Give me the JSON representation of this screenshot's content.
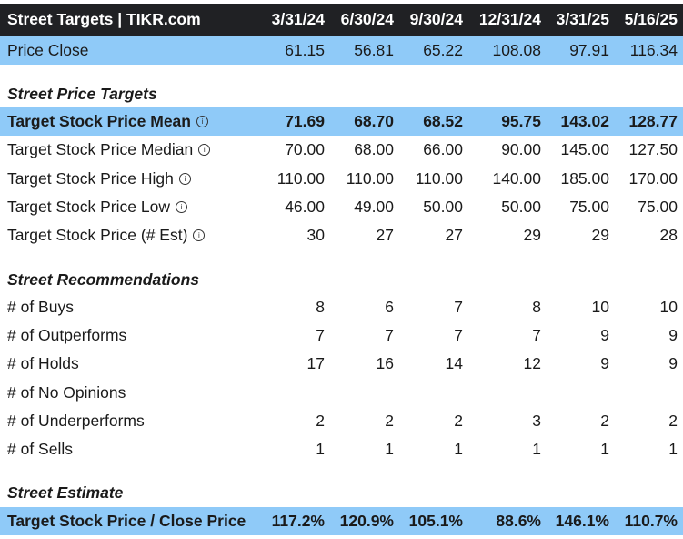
{
  "title": "Street Targets | TIKR.com",
  "columns": [
    "3/31/24",
    "6/30/24",
    "9/30/24",
    "12/31/24",
    "3/31/25",
    "5/16/25"
  ],
  "rows": [
    {
      "label": "Price Close",
      "values": [
        "61.15",
        "56.81",
        "65.22",
        "108.08",
        "97.91",
        "116.34"
      ],
      "style": "blue"
    },
    {
      "label": "Street Price Targets",
      "values": [],
      "style": "section"
    },
    {
      "label": "Target Stock Price Mean",
      "values": [
        "71.69",
        "68.70",
        "68.52",
        "95.75",
        "143.02",
        "128.77"
      ],
      "style": "blue-bold",
      "info": true
    },
    {
      "label": "Target Stock Price Median",
      "values": [
        "70.00",
        "68.00",
        "66.00",
        "90.00",
        "145.00",
        "127.50"
      ],
      "style": "normal",
      "info": true
    },
    {
      "label": "Target Stock Price High",
      "values": [
        "110.00",
        "110.00",
        "110.00",
        "140.00",
        "185.00",
        "170.00"
      ],
      "style": "normal",
      "info": true
    },
    {
      "label": "Target Stock Price Low",
      "values": [
        "46.00",
        "49.00",
        "50.00",
        "50.00",
        "75.00",
        "75.00"
      ],
      "style": "normal",
      "info": true
    },
    {
      "label": "Target Stock Price (# Est)",
      "values": [
        "30",
        "27",
        "27",
        "29",
        "29",
        "28"
      ],
      "style": "normal",
      "info": true
    },
    {
      "label": "Street Recommendations",
      "values": [],
      "style": "section"
    },
    {
      "label": "# of Buys",
      "values": [
        "8",
        "6",
        "7",
        "8",
        "10",
        "10"
      ],
      "style": "normal"
    },
    {
      "label": "# of Outperforms",
      "values": [
        "7",
        "7",
        "7",
        "7",
        "9",
        "9"
      ],
      "style": "normal"
    },
    {
      "label": "# of Holds",
      "values": [
        "17",
        "16",
        "14",
        "12",
        "9",
        "9"
      ],
      "style": "normal"
    },
    {
      "label": "# of No Opinions",
      "values": [
        "",
        "",
        "",
        "",
        "",
        ""
      ],
      "style": "normal"
    },
    {
      "label": "# of Underperforms",
      "values": [
        "2",
        "2",
        "2",
        "3",
        "2",
        "2"
      ],
      "style": "normal"
    },
    {
      "label": "# of Sells",
      "values": [
        "1",
        "1",
        "1",
        "1",
        "1",
        "1"
      ],
      "style": "normal"
    },
    {
      "label": "Street Estimate",
      "values": [],
      "style": "section"
    },
    {
      "label": "Target Stock Price / Close Price",
      "values": [
        "117.2%",
        "120.9%",
        "105.1%",
        "88.6%",
        "146.1%",
        "110.7%"
      ],
      "style": "blue-bold"
    }
  ],
  "colors": {
    "header_bg": "#202124",
    "highlight": "#8fcaf8",
    "info_icon": "info-circle-icon"
  }
}
